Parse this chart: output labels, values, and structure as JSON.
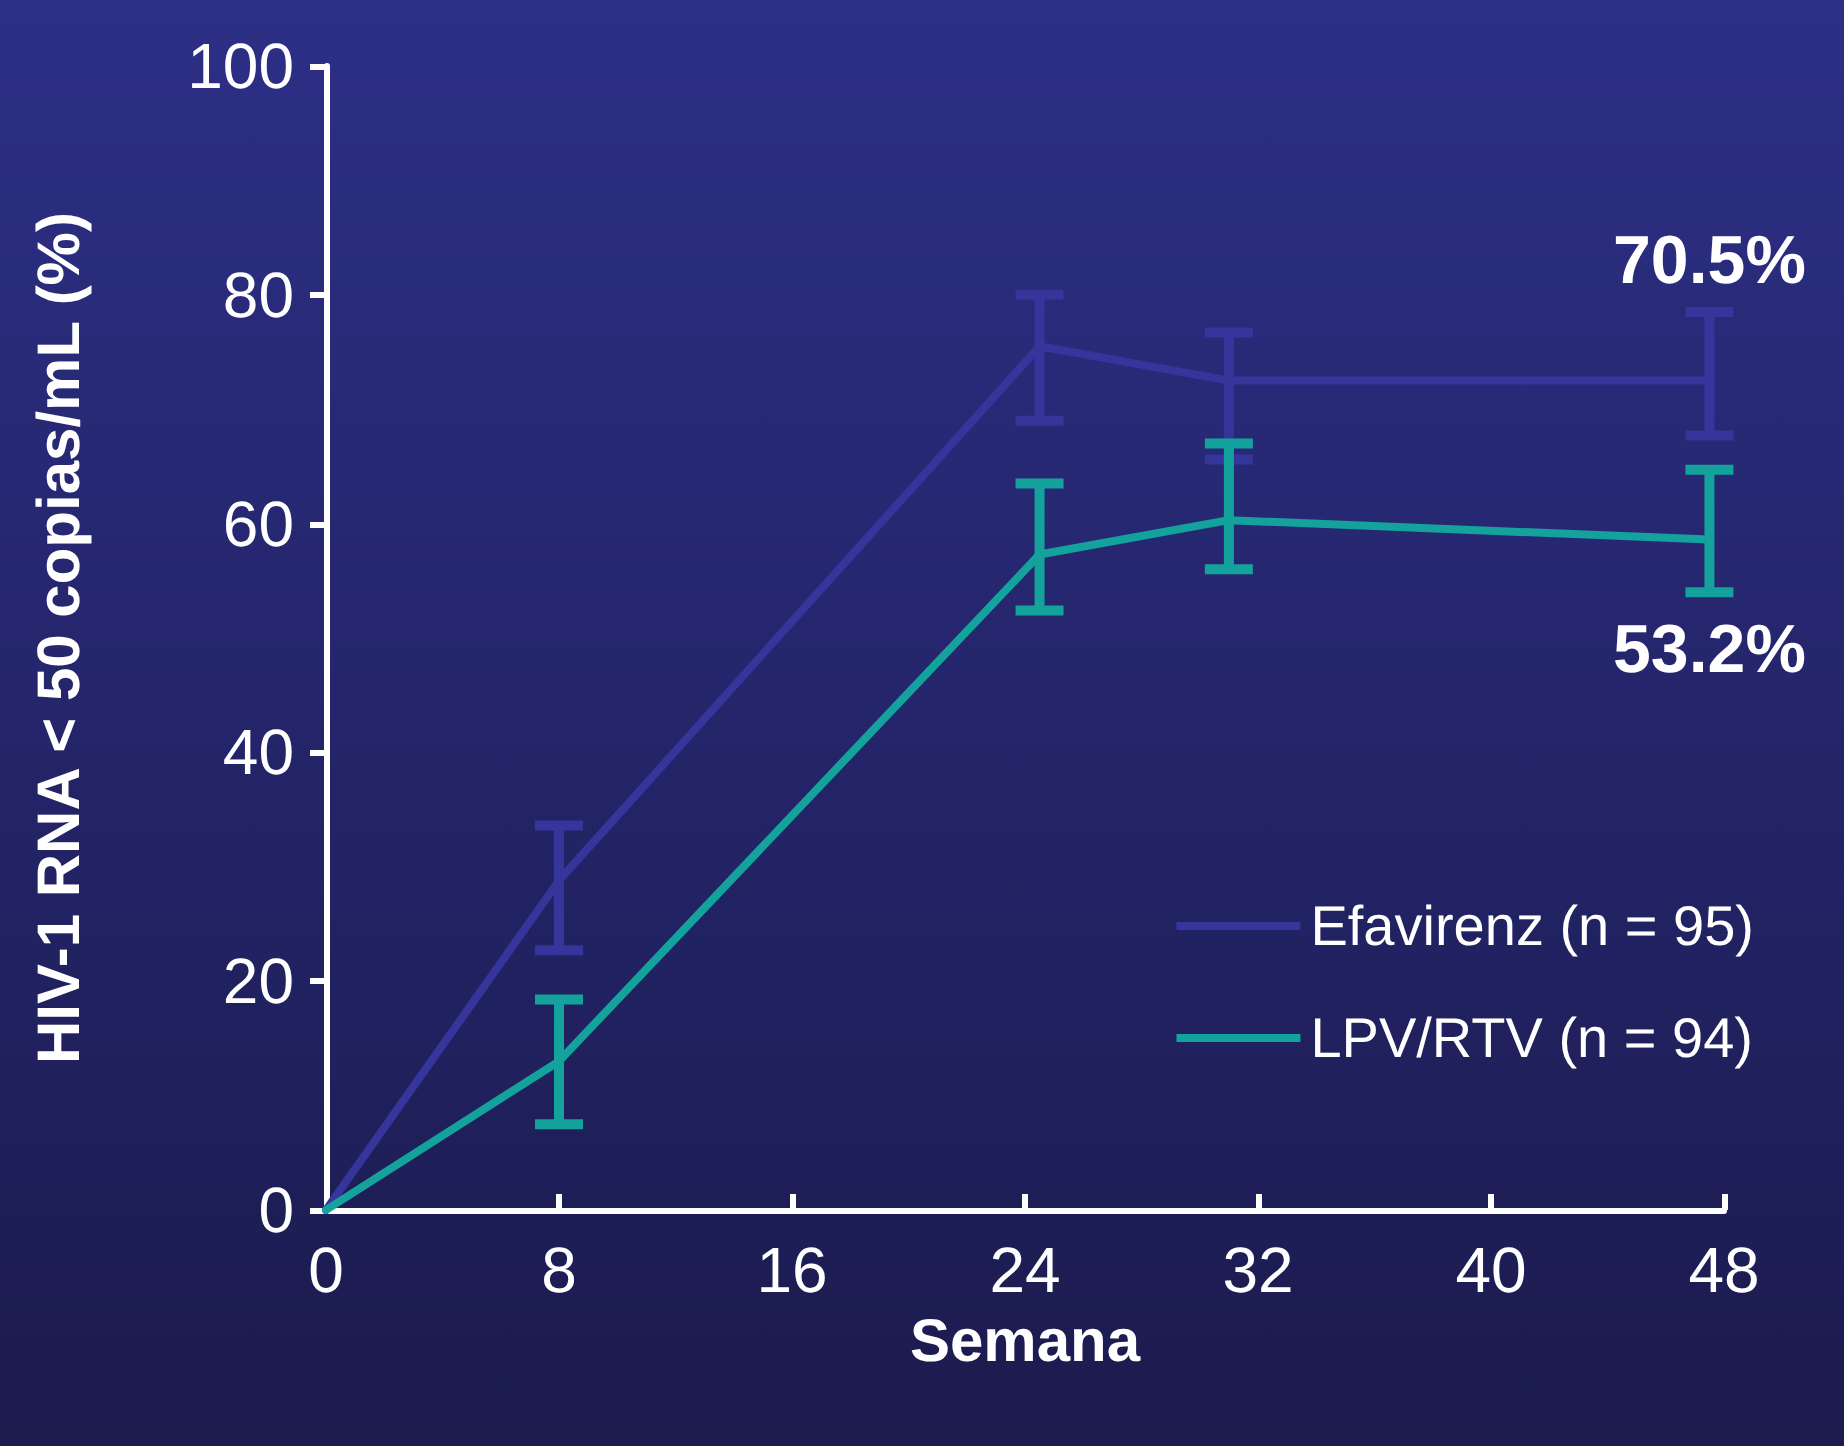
{
  "chart_data": {
    "type": "line",
    "xlabel": "Semana",
    "ylabel": "HIV-1 RNA < 50 copias/mL (%)",
    "xlim": [
      0,
      48
    ],
    "xticks": [
      0,
      8,
      16,
      24,
      32,
      40,
      48
    ],
    "ylim": [
      0,
      100
    ],
    "yticks": [
      0,
      20,
      40,
      60,
      80,
      100
    ],
    "grid": false,
    "legend": "bottom right",
    "marker": "none",
    "line_style": "solid",
    "series": [
      {
        "name": "Efavirenz (n = 95)",
        "color": "#35359c",
        "x": [
          0,
          8,
          24.5,
          31,
          47.5
        ],
        "values": [
          0,
          28.8,
          75.5,
          72.5,
          72.5
        ],
        "errors": [
          null,
          [
            22.7,
            33.6
          ],
          [
            69,
            80
          ],
          [
            65.6,
            76.7
          ],
          [
            67.7,
            78.5
          ]
        ]
      },
      {
        "name": "LPV/RTV (n = 94)",
        "color": "#14a39c",
        "x": [
          0,
          8,
          24.5,
          31,
          47.5
        ],
        "values": [
          0,
          13,
          57.3,
          60.3,
          58.6
        ],
        "errors": [
          null,
          [
            7.5,
            18.4
          ],
          [
            52.4,
            63.5
          ],
          [
            56,
            67
          ],
          [
            54,
            64.7
          ]
        ]
      }
    ],
    "annotations": [
      {
        "text": "70.5%",
        "x": 47.5,
        "y": 72.5
      },
      {
        "text": "53.2%",
        "x": 47.5,
        "y": 58.6
      }
    ]
  }
}
